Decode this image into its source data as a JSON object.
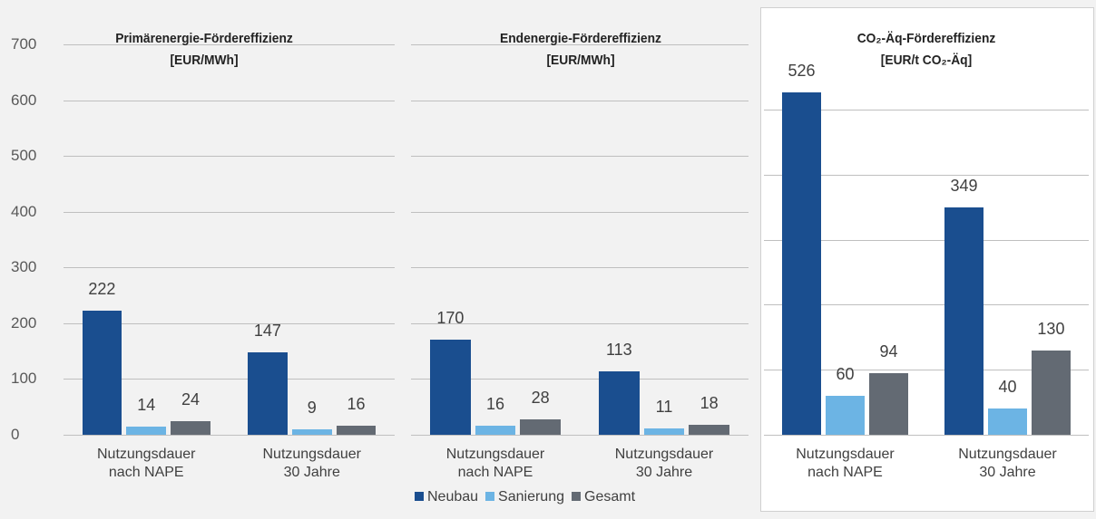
{
  "chart_data": [
    {
      "type": "bar",
      "title": "Primärenergie-Fördereffizienz",
      "subtitle": "[EUR/MWh]",
      "categories": [
        "Nutzungsdauer\nnach NAPE",
        "Nutzungsdauer\n30 Jahre"
      ],
      "series": [
        {
          "name": "Neubau",
          "color": "#1a4e8f",
          "values": [
            222,
            147
          ]
        },
        {
          "name": "Sanierung",
          "color": "#6cb4e4",
          "values": [
            14,
            9
          ]
        },
        {
          "name": "Gesamt",
          "color": "#636a73",
          "values": [
            24,
            16
          ]
        }
      ],
      "ylim": [
        0,
        700
      ],
      "yticks": [
        0,
        100,
        200,
        300,
        400,
        500,
        600,
        700
      ],
      "ytick_labels": true,
      "grid": true,
      "background": "#f2f2f2"
    },
    {
      "type": "bar",
      "title": "Endenergie-Fördereffizienz",
      "subtitle": "[EUR/MWh]",
      "categories": [
        "Nutzungsdauer\nnach NAPE",
        "Nutzungsdauer\n30 Jahre"
      ],
      "series": [
        {
          "color": "#1a4e8f",
          "values": [
            170,
            113
          ]
        },
        {
          "color": "#6cb4e4",
          "values": [
            16,
            11
          ]
        },
        {
          "color": "#636a73",
          "values": [
            28,
            18
          ]
        }
      ],
      "ylim": [
        0,
        700
      ],
      "yticks": [
        0,
        100,
        200,
        300,
        400,
        500,
        600,
        700
      ],
      "ytick_labels": false,
      "grid": true,
      "background": "#f2f2f2"
    },
    {
      "type": "bar",
      "title": "CO₂-Äq-Fördereffizienz",
      "subtitle": "[EUR/t CO₂-Äq]",
      "categories": [
        "Nutzungsdauer\nnach NAPE",
        "Nutzungsdauer\n30 Jahre"
      ],
      "series": [
        {
          "color": "#1a4e8f",
          "values": [
            526,
            349
          ]
        },
        {
          "color": "#6cb4e4",
          "values": [
            60,
            40
          ]
        },
        {
          "color": "#636a73",
          "values": [
            94,
            130
          ]
        }
      ],
      "ylim": [
        0,
        600
      ],
      "yticks": [
        0,
        100,
        200,
        300,
        400,
        500
      ],
      "ytick_labels": false,
      "grid": true,
      "background": "#ffffff"
    }
  ]
}
